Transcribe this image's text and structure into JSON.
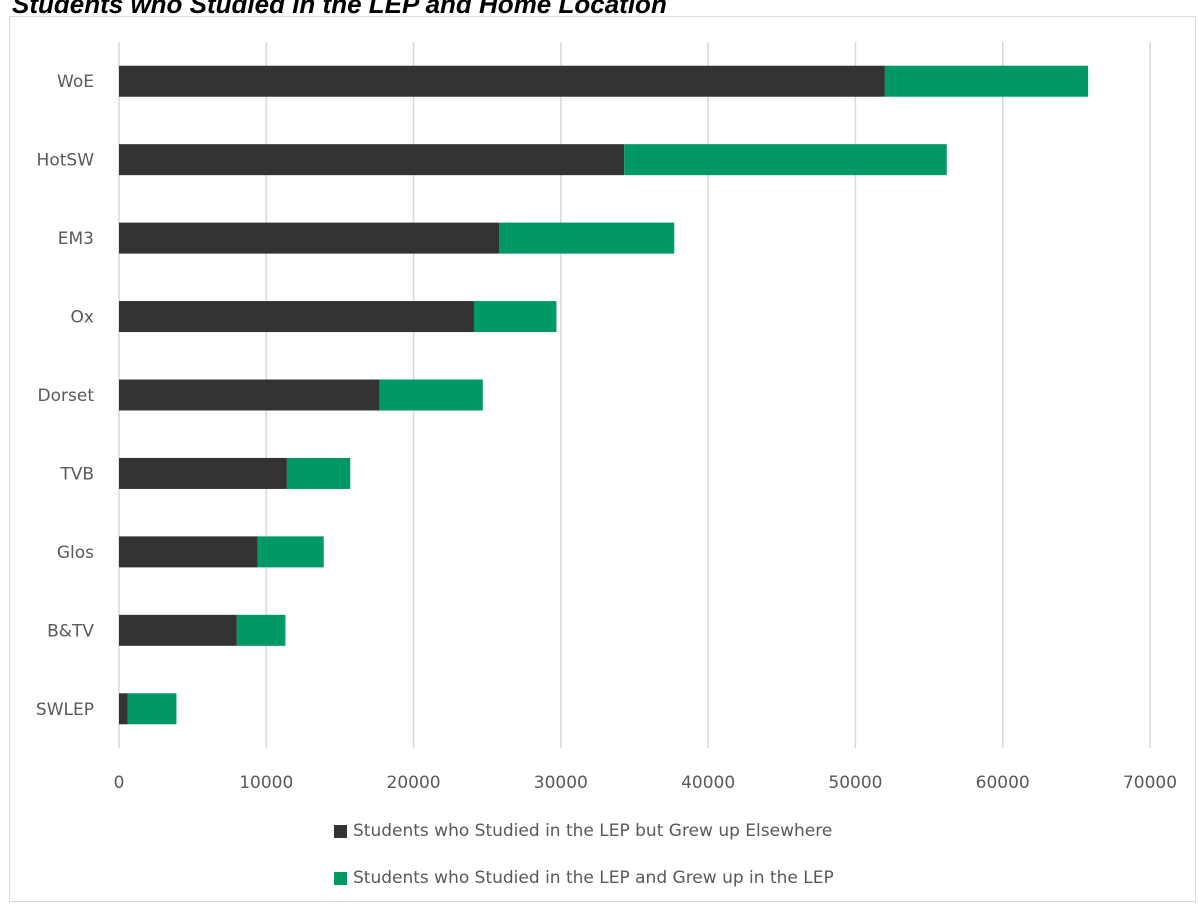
{
  "chart_data": {
    "type": "bar",
    "orientation": "horizontal",
    "stacked": true,
    "title": "Students who Studied in the LEP and Home Location",
    "categories": [
      "WoE",
      "HotSW",
      "EM3",
      "Ox",
      "Dorset",
      "TVB",
      "Glos",
      "B&TV",
      "SWLEP"
    ],
    "series": [
      {
        "name": "Students who Studied in the LEP but Grew up Elsewhere",
        "color": "#333333",
        "values": [
          52000,
          34300,
          25800,
          24100,
          17700,
          11400,
          9400,
          8000,
          600
        ]
      },
      {
        "name": "Students who Studied in the LEP and Grew up in the LEP",
        "color": "#009966",
        "values": [
          13800,
          21900,
          11900,
          5600,
          7000,
          4300,
          4500,
          3300,
          3300
        ]
      }
    ],
    "xlim": [
      0,
      70000
    ],
    "xticks": [
      0,
      10000,
      20000,
      30000,
      40000,
      50000,
      60000,
      70000
    ],
    "xlabel": "",
    "ylabel": "",
    "grid": "vertical",
    "legend_position": "bottom"
  }
}
